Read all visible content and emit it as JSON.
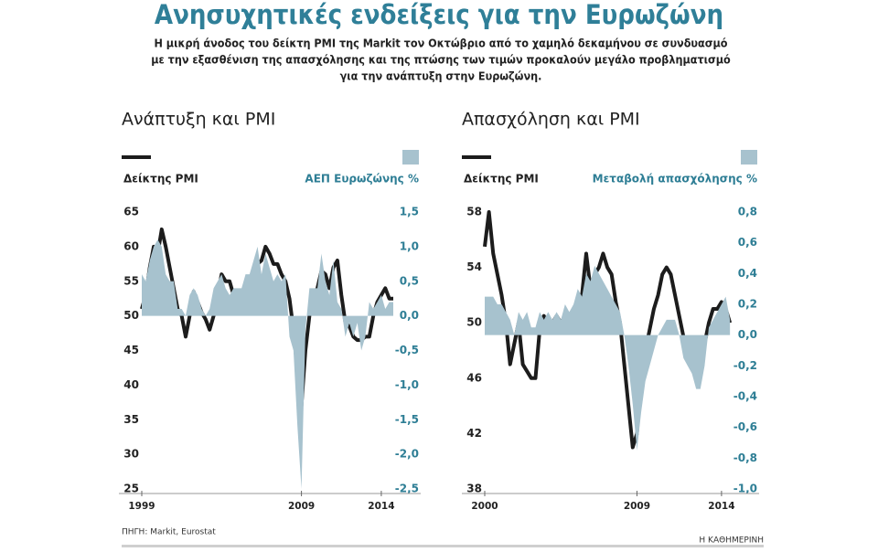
{
  "header": {
    "title": "Ανησυχητικές ενδείξεις για την Ευρωζώνη",
    "subtitle": [
      "Η μικρή άνοδος του δείκτη PMI της Markit τον Οκτώβριο από το χαμηλό δεκαμήνου σε συνδυασμό",
      "με την εξασθένιση της απασχόλησης και της πτώσης των τιμών προκαλούν μεγάλο προβληματισμό",
      "για την ανάπτυξη στην Ευρωζώνη."
    ]
  },
  "chart_data": [
    {
      "type": "line",
      "title": "Ανάπτυξη και PMI",
      "x": [
        1999,
        1999.25,
        1999.5,
        1999.75,
        2000,
        2000.25,
        2000.5,
        2000.75,
        2001,
        2001.25,
        2001.5,
        2001.75,
        2002,
        2002.25,
        2002.5,
        2002.75,
        2003,
        2003.25,
        2003.5,
        2003.75,
        2004,
        2004.25,
        2004.5,
        2004.75,
        2005,
        2005.25,
        2005.5,
        2005.75,
        2006,
        2006.25,
        2006.5,
        2006.75,
        2007,
        2007.25,
        2007.5,
        2007.75,
        2008,
        2008.25,
        2008.5,
        2008.75,
        2009,
        2009.25,
        2009.5,
        2009.75,
        2010,
        2010.25,
        2010.5,
        2010.75,
        2011,
        2011.25,
        2011.5,
        2011.75,
        2012,
        2012.25,
        2012.5,
        2012.75,
        2013,
        2013.25,
        2013.5,
        2013.75,
        2014,
        2014.25,
        2014.5,
        2014.75
      ],
      "series": [
        {
          "name": "Δείκτης PMI",
          "color": "#1c1c1c",
          "type": "line",
          "values": [
            51,
            53,
            57,
            60,
            59,
            62.5,
            60,
            57,
            54,
            51,
            50,
            47,
            50,
            53.5,
            52,
            50.5,
            49.5,
            48,
            50,
            53,
            56,
            55,
            55,
            53,
            53,
            51.5,
            53,
            55,
            56.5,
            57.5,
            58,
            60,
            59,
            57.5,
            57.5,
            56,
            55,
            52.5,
            48,
            42,
            37,
            45,
            50,
            53,
            54,
            56.5,
            56,
            54,
            57,
            58,
            53,
            49,
            48.5,
            47,
            46.5,
            46.5,
            47,
            47,
            50,
            52,
            53,
            54,
            52.5,
            52.5
          ]
        },
        {
          "name": "ΑΕΠ Ευρωζώνης %",
          "color": "#a7c2ce",
          "type": "area",
          "axis": "y2",
          "values": [
            0.6,
            0.5,
            0.8,
            1.0,
            1.1,
            1.0,
            0.6,
            0.5,
            0.5,
            0.1,
            0.1,
            0.0,
            0.3,
            0.4,
            0.3,
            0.1,
            0.0,
            0.1,
            0.4,
            0.5,
            0.6,
            0.4,
            0.3,
            0.4,
            0.4,
            0.4,
            0.6,
            0.6,
            0.8,
            1.0,
            0.6,
            0.9,
            0.7,
            0.5,
            0.6,
            0.5,
            0.6,
            -0.3,
            -0.5,
            -1.6,
            -2.5,
            -0.2,
            0.4,
            0.4,
            0.4,
            0.9,
            0.5,
            0.3,
            0.8,
            0.2,
            0.1,
            -0.3,
            -0.1,
            -0.3,
            -0.1,
            -0.5,
            -0.3,
            0.2,
            0.1,
            0.2,
            0.3,
            0.1,
            0.2,
            0.2
          ]
        }
      ],
      "xlim": [
        1999,
        2014.75
      ],
      "xticks": [
        1999,
        2009,
        2014
      ],
      "ylim": [
        25,
        65
      ],
      "yticks": [
        25,
        30,
        35,
        40,
        45,
        50,
        55,
        60,
        65
      ],
      "y2lim": [
        -2.5,
        1.5
      ],
      "y2ticks": [
        {
          "value": -2.5,
          "label": "-2,5"
        },
        {
          "value": -2.0,
          "label": "-2,0"
        },
        {
          "value": -1.5,
          "label": "-1,5"
        },
        {
          "value": -1.0,
          "label": "-1,0"
        },
        {
          "value": -0.5,
          "label": "-0,5"
        },
        {
          "value": 0,
          "label": "0,0"
        },
        {
          "value": 0.5,
          "label": "0,5"
        },
        {
          "value": 1.0,
          "label": "1,0"
        },
        {
          "value": 1.5,
          "label": "1,5"
        }
      ]
    },
    {
      "type": "line",
      "title": "Απασχόληση και PMI",
      "x": [
        2000,
        2000.25,
        2000.5,
        2000.75,
        2001,
        2001.25,
        2001.5,
        2001.75,
        2002,
        2002.25,
        2002.5,
        2002.75,
        2003,
        2003.25,
        2003.5,
        2003.75,
        2004,
        2004.25,
        2004.5,
        2004.75,
        2005,
        2005.25,
        2005.5,
        2005.75,
        2006,
        2006.25,
        2006.5,
        2006.75,
        2007,
        2007.25,
        2007.5,
        2007.75,
        2008,
        2008.25,
        2008.5,
        2008.75,
        2009,
        2009.25,
        2009.5,
        2009.75,
        2010,
        2010.25,
        2010.5,
        2010.75,
        2011,
        2011.25,
        2011.5,
        2011.75,
        2012,
        2012.25,
        2012.5,
        2012.75,
        2013,
        2013.25,
        2013.5,
        2013.75,
        2014,
        2014.25,
        2014.5
      ],
      "series": [
        {
          "name": "Δείκτης PMI",
          "color": "#1c1c1c",
          "type": "line",
          "values": [
            55.5,
            58,
            55,
            53.5,
            52,
            50,
            47,
            48.5,
            50,
            47,
            46.5,
            46,
            46,
            49.5,
            50.5,
            49.5,
            50,
            50.5,
            50,
            50.5,
            50.5,
            50,
            51,
            52,
            55,
            52.5,
            53.5,
            54,
            55,
            54,
            53.5,
            51.5,
            50,
            47,
            44,
            41,
            42,
            46.5,
            48,
            49.5,
            51,
            52,
            53.5,
            54,
            53.5,
            52,
            50.5,
            49,
            48.5,
            48,
            47.5,
            48,
            48.5,
            50,
            51,
            51,
            51.5,
            51,
            50
          ]
        },
        {
          "name": "Μεταβολή απασχόλησης %",
          "color": "#a7c2ce",
          "type": "area",
          "axis": "y2",
          "values": [
            0.25,
            0.25,
            0.25,
            0.2,
            0.2,
            0.15,
            0.1,
            0.0,
            0.15,
            0.1,
            0.15,
            0.05,
            0.05,
            0.15,
            0.1,
            0.15,
            0.1,
            0.15,
            0.1,
            0.2,
            0.15,
            0.2,
            0.3,
            0.25,
            0.4,
            0.35,
            0.45,
            0.4,
            0.35,
            0.3,
            0.25,
            0.2,
            0.15,
            0.0,
            -0.2,
            -0.45,
            -0.75,
            -0.5,
            -0.3,
            -0.2,
            -0.1,
            0.0,
            0.05,
            0.1,
            0.1,
            0.1,
            0.0,
            -0.15,
            -0.2,
            -0.25,
            -0.35,
            -0.35,
            -0.2,
            0.05,
            0.1,
            0.15,
            0.2,
            0.25,
            0.1
          ]
        }
      ],
      "xlim": [
        2000,
        2014.6
      ],
      "xticks": [
        2000,
        2009,
        2014
      ],
      "ylim": [
        38,
        58
      ],
      "yticks": [
        38,
        42,
        46,
        50,
        54,
        58
      ],
      "y2lim": [
        -1.0,
        0.8
      ],
      "y2ticks": [
        {
          "value": -1.0,
          "label": "-1,0"
        },
        {
          "value": -0.8,
          "label": "-0,8"
        },
        {
          "value": -0.6,
          "label": "-0,6"
        },
        {
          "value": -0.4,
          "label": "-0,4"
        },
        {
          "value": -0.2,
          "label": "-0,2"
        },
        {
          "value": 0,
          "label": "0,0"
        },
        {
          "value": 0.2,
          "label": "0,2"
        },
        {
          "value": 0.4,
          "label": "0,4"
        },
        {
          "value": 0.6,
          "label": "0,6"
        },
        {
          "value": 0.8,
          "label": "0,8"
        }
      ]
    }
  ],
  "source": "ΠΗΓΗ: Markit, Eurostat",
  "brand": "Η ΚΑΘΗΜΕΡΙΝΗ"
}
